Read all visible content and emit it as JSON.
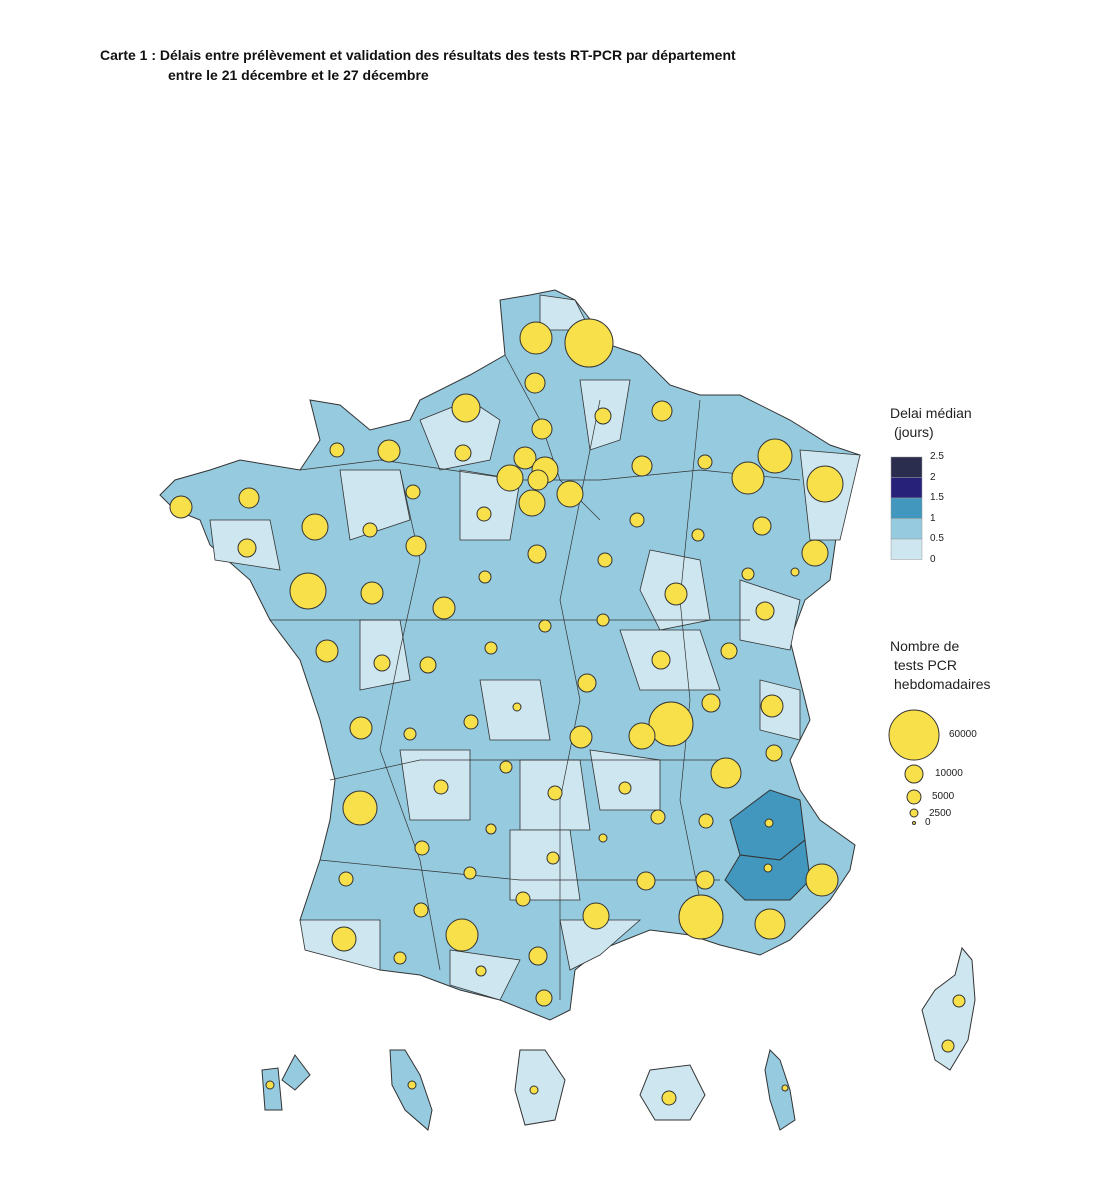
{
  "title": {
    "line1": "Carte 1 : Délais entre prélèvement et validation des résultats des tests RT-PCR par département",
    "line2": "entre le 21 décembre et le 27 décembre"
  },
  "legend_delay": {
    "title1": "Delai médian",
    "title2": "(jours)",
    "breaks": [
      "2.5",
      "2",
      "1.5",
      "1",
      "0.5",
      "0"
    ],
    "colors": [
      "#2b2d4f",
      "#27217a",
      "#4197bd",
      "#95cadf",
      "#cde6f0"
    ]
  },
  "legend_tests": {
    "title1": "Nombre de",
    "title2": "tests PCR",
    "title3": "hebdomadaires",
    "sizes": [
      "60000",
      "10000",
      "5000",
      "2500",
      "0"
    ]
  },
  "colors": {
    "bubble": "#f7e04a",
    "stroke": "#333333"
  }
}
